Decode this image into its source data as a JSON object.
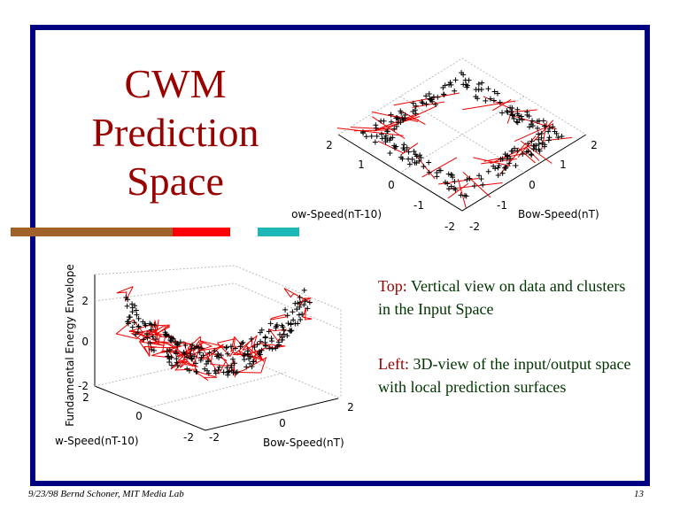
{
  "title_lines": [
    "CWM",
    "Prediction",
    "Space"
  ],
  "top_plot": {
    "left_ticks": [
      "2",
      "1",
      "0",
      "-1",
      "-2"
    ],
    "right_ticks": [
      "-2",
      "-1",
      "0",
      "1",
      "2"
    ],
    "left_label": "ow-Speed(nT-10)",
    "right_label": "Bow-Speed(nT)"
  },
  "bottom_plot": {
    "z_label": "Fundamental Energy Envelope",
    "z_ticks": [
      "2",
      "0",
      "-2"
    ],
    "y_ticks": [
      "2",
      "0",
      "-2"
    ],
    "x_ticks": [
      "-2",
      "0",
      "2"
    ],
    "y_label": "w-Speed(nT-10)",
    "x_label": "Bow-Speed(nT)"
  },
  "captions": [
    {
      "lead": "Top:",
      "text": "Vertical view on data and clusters in the Input Space"
    },
    {
      "lead": "Left:",
      "text": "3D-view of the input/output space with local prediction surfaces"
    }
  ],
  "footer": {
    "left": "9/23/98  Bernd Schoner, MIT Media Lab",
    "page": "13"
  }
}
